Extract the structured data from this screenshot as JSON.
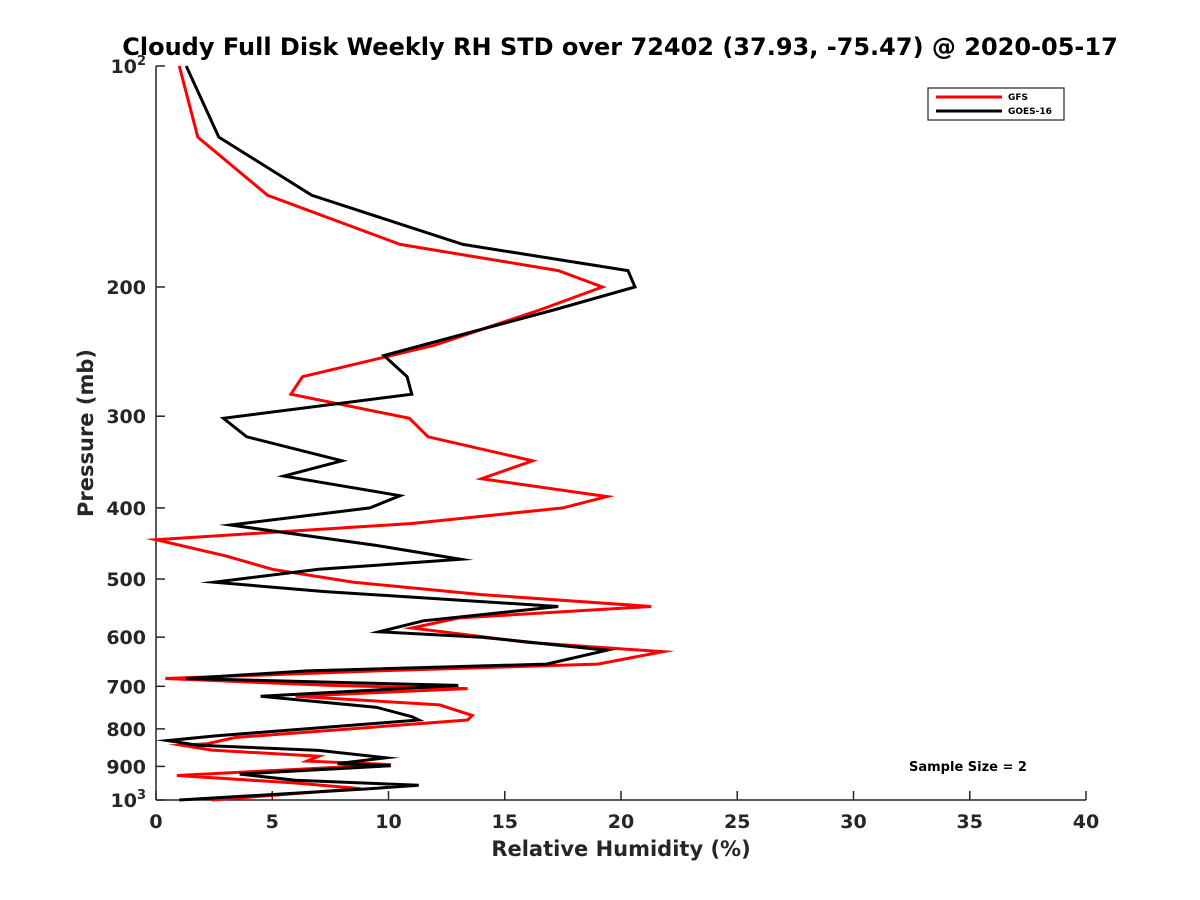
{
  "chart_data": {
    "type": "line",
    "title": "Cloudy Full Disk Weekly RH STD over 72402 (37.93, -75.47) @ 2020-05-17",
    "xlabel": "Relative Humidity (%)",
    "ylabel": "Pressure (mb)",
    "xlim": [
      0,
      40
    ],
    "ylim": [
      100,
      1000
    ],
    "y_scale": "log",
    "y_reversed": true,
    "x_ticks": [
      "0",
      "5",
      "10",
      "15",
      "20",
      "25",
      "30",
      "35",
      "40"
    ],
    "y_ticks": [
      {
        "value": 100,
        "base": "10",
        "exp": "2"
      },
      {
        "value": 200,
        "label": "200"
      },
      {
        "value": 300,
        "label": "300"
      },
      {
        "value": 400,
        "label": "400"
      },
      {
        "value": 500,
        "label": "500"
      },
      {
        "value": 600,
        "label": "600"
      },
      {
        "value": 700,
        "label": "700"
      },
      {
        "value": 800,
        "label": "800"
      },
      {
        "value": 900,
        "label": "900"
      },
      {
        "value": 1000,
        "base": "10",
        "exp": "3"
      }
    ],
    "grid": false,
    "legend_position": "top-right",
    "annotation": "Sample Size = 2",
    "series": [
      {
        "name": "GFS",
        "color": "#ff0000",
        "points": [
          [
            1.0,
            100
          ],
          [
            1.8,
            125
          ],
          [
            4.8,
            150
          ],
          [
            10.5,
            175
          ],
          [
            17.3,
            190
          ],
          [
            19.2,
            200
          ],
          [
            16.5,
            215
          ],
          [
            12.0,
            240
          ],
          [
            6.3,
            265
          ],
          [
            5.8,
            280
          ],
          [
            10.9,
            302
          ],
          [
            11.7,
            320
          ],
          [
            16.2,
            345
          ],
          [
            14.0,
            365
          ],
          [
            19.4,
            386
          ],
          [
            17.5,
            400
          ],
          [
            11.0,
            420
          ],
          [
            0.0,
            442
          ],
          [
            3.0,
            465
          ],
          [
            5.0,
            485
          ],
          [
            8.5,
            505
          ],
          [
            14.0,
            525
          ],
          [
            21.3,
            545
          ],
          [
            13.0,
            565
          ],
          [
            11.0,
            583
          ],
          [
            16.0,
            610
          ],
          [
            21.8,
            628
          ],
          [
            19.0,
            653
          ],
          [
            9.5,
            667
          ],
          [
            0.4,
            683
          ],
          [
            7.5,
            698
          ],
          [
            13.4,
            705
          ],
          [
            6.0,
            722
          ],
          [
            12.2,
            742
          ],
          [
            13.6,
            767
          ],
          [
            13.4,
            778
          ],
          [
            3.4,
            822
          ],
          [
            2.2,
            838
          ],
          [
            1.1,
            842
          ],
          [
            2.4,
            855
          ],
          [
            7.0,
            872
          ],
          [
            6.5,
            885
          ],
          [
            10.1,
            895
          ],
          [
            7.0,
            905
          ],
          [
            0.9,
            926
          ],
          [
            6.0,
            948
          ],
          [
            8.8,
            965
          ],
          [
            2.4,
            1000
          ]
        ]
      },
      {
        "name": "GOES-16",
        "color": "#000000",
        "points": [
          [
            1.3,
            100
          ],
          [
            2.7,
            125
          ],
          [
            6.7,
            150
          ],
          [
            13.2,
            175
          ],
          [
            20.3,
            190
          ],
          [
            20.6,
            200
          ],
          [
            17.1,
            215
          ],
          [
            9.8,
            248
          ],
          [
            10.8,
            265
          ],
          [
            11.0,
            280
          ],
          [
            2.9,
            302
          ],
          [
            3.9,
            320
          ],
          [
            8.0,
            345
          ],
          [
            5.5,
            362
          ],
          [
            10.5,
            385
          ],
          [
            9.2,
            400
          ],
          [
            3.2,
            422
          ],
          [
            9.5,
            450
          ],
          [
            13.1,
            470
          ],
          [
            7.0,
            485
          ],
          [
            2.5,
            505
          ],
          [
            7.2,
            520
          ],
          [
            17.3,
            545
          ],
          [
            11.5,
            570
          ],
          [
            9.6,
            590
          ],
          [
            14.0,
            600
          ],
          [
            19.4,
            625
          ],
          [
            16.8,
            653
          ],
          [
            6.5,
            667
          ],
          [
            1.3,
            683
          ],
          [
            13.0,
            698
          ],
          [
            4.5,
            722
          ],
          [
            9.5,
            748
          ],
          [
            11.0,
            770
          ],
          [
            11.3,
            778
          ],
          [
            2.5,
            818
          ],
          [
            0.5,
            830
          ],
          [
            1.8,
            842
          ],
          [
            7.0,
            856
          ],
          [
            9.9,
            876
          ],
          [
            7.8,
            892
          ],
          [
            10.1,
            898
          ],
          [
            3.6,
            922
          ],
          [
            6.0,
            940
          ],
          [
            11.3,
            955
          ],
          [
            9.0,
            966
          ],
          [
            1.0,
            1000
          ]
        ]
      }
    ]
  }
}
